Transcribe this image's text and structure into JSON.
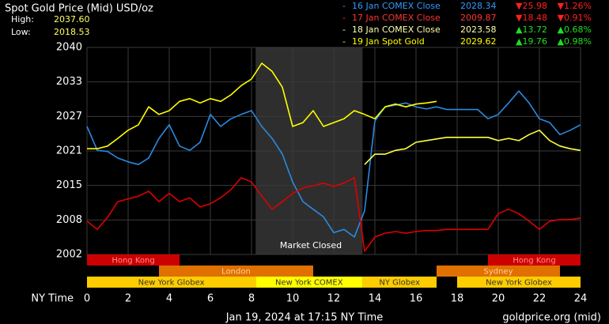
{
  "chart_data": {
    "type": "line",
    "title": "Spot Gold Price (Mid) USD/oz",
    "high_label": "High:",
    "high": 2037.6,
    "high_text": "2037.60",
    "low_label": "Low:",
    "low": 2018.53,
    "low_text": "2018.53",
    "xlabel": "NY Time",
    "annotation": "Market Closed",
    "footer_left": "Jan 19, 2024 at 17:15 NY Time",
    "footer_right": "goldprice.org (mid)",
    "closed_span": [
      8.2,
      13.4
    ],
    "up_color": "#22dd22",
    "down_color": "#ff2020",
    "grid": true,
    "xlim": [
      0,
      24
    ],
    "xticks": [
      0,
      2,
      4,
      6,
      8,
      10,
      12,
      14,
      16,
      18,
      20,
      22,
      24
    ],
    "ylim": [
      2002,
      2040
    ],
    "yticks": [
      2002,
      {
        "value": 2008.33,
        "label": "2008"
      },
      {
        "value": 2014.67,
        "label": "2015"
      },
      2021,
      {
        "value": 2027.33,
        "label": "2027"
      },
      {
        "value": 2033.67,
        "label": "2033"
      },
      2040
    ],
    "x": [
      0,
      0.5,
      1,
      1.5,
      2,
      2.5,
      3,
      3.5,
      4,
      4.5,
      5,
      5.5,
      6,
      6.5,
      7,
      7.5,
      8,
      8.5,
      9,
      9.5,
      10,
      10.5,
      11,
      11.5,
      12,
      12.5,
      13,
      13.5,
      14,
      14.5,
      15,
      15.5,
      16,
      16.5,
      17,
      17.5,
      18,
      18.5,
      19,
      19.5,
      20,
      20.5,
      21,
      21.5,
      22,
      22.5,
      23,
      23.5,
      24
    ],
    "series": [
      {
        "name": "16 Jan COMEX Close",
        "color": "#2a8ae0",
        "legend_color": "#3399ff",
        "last": "2028.34",
        "change": "▼25.98",
        "change_pct": "▼1.26%",
        "values": [
          2025.5,
          2021.1,
          2020.9,
          2019.7,
          2019,
          2018.5,
          2019.7,
          2023.3,
          2025.8,
          2021.9,
          2021.1,
          2022.6,
          2027.7,
          2025.5,
          2026.9,
          2027.7,
          2028.4,
          2025.5,
          2023.3,
          2020.4,
          2015.3,
          2011.7,
          2010.3,
          2008.9,
          2006,
          2006.6,
          2005.2,
          2010,
          2026.5,
          2029.1,
          2029.4,
          2029.8,
          2029.1,
          2028.7,
          2029.1,
          2028.6,
          2028.6,
          2028.6,
          2028.6,
          2026.9,
          2027.7,
          2029.8,
          2032,
          2029.8,
          2026.9,
          2026.2,
          2024,
          2024.8,
          2025.8
        ]
      },
      {
        "name": "17 Jan COMEX Close",
        "color": "#dd0000",
        "legend_color": "#ff3333",
        "last": "2009.87",
        "change": "▼18.48",
        "change_pct": "▼0.91%",
        "values": [
          2008.1,
          2006.6,
          2008.8,
          2011.7,
          2012.2,
          2012.7,
          2013.6,
          2011.7,
          2013.2,
          2011.7,
          2012.4,
          2010.7,
          2011.3,
          2012.4,
          2013.9,
          2016.1,
          2015.3,
          2012.7,
          2010.3,
          2011.7,
          2013.2,
          2014.2,
          2014.6,
          2015.1,
          2014.5,
          2015.1,
          2016.1,
          2002.6,
          2005.2,
          2005.9,
          2006.2,
          2005.9,
          2006.2,
          2006.4,
          2006.4,
          2006.6,
          2006.6,
          2006.6,
          2006.6,
          2006.6,
          2009.5,
          2010.3,
          2009.5,
          2008.1,
          2006.6,
          2008.1,
          2008.4,
          2008.4,
          2008.7
        ]
      },
      {
        "name": "18 Jan COMEX Close",
        "color": "#ffff44",
        "legend_color": "#ffffaa",
        "last": "2023.58",
        "change": "▲13.72",
        "change_pct": "▲0.68%",
        "values": [
          null,
          null,
          null,
          null,
          null,
          null,
          null,
          null,
          null,
          null,
          null,
          null,
          null,
          null,
          null,
          null,
          null,
          null,
          null,
          null,
          null,
          null,
          null,
          null,
          null,
          null,
          null,
          2018.5,
          2020.4,
          2020.4,
          2021.1,
          2021.4,
          2022.6,
          2022.9,
          2023.2,
          2023.5,
          2023.5,
          2023.5,
          2023.5,
          2023.5,
          2022.9,
          2023.3,
          2022.9,
          2024,
          2024.8,
          2022.9,
          2021.9,
          2021.4,
          2021.1
        ]
      },
      {
        "name": "19 Jan Spot Gold",
        "color": "#ffff00",
        "legend_color": "#ffff00",
        "last": "2029.62",
        "change": "▲19.76",
        "change_pct": "▲0.98%",
        "values": [
          2021.4,
          2021.4,
          2021.9,
          2023.3,
          2024.8,
          2025.8,
          2029.1,
          2027.7,
          2028.4,
          2030.1,
          2030.6,
          2029.8,
          2030.6,
          2030.1,
          2031.3,
          2033,
          2034.2,
          2037.1,
          2035.6,
          2032.7,
          2025.5,
          2026.2,
          2028.4,
          2025.5,
          2026.2,
          2026.9,
          2028.4,
          2027.7,
          2026.9,
          2029.1,
          2029.6,
          2029.1,
          2029.6,
          2029.8,
          2030.1,
          null,
          null,
          null,
          null,
          null,
          null,
          null,
          null,
          null,
          null,
          null,
          null,
          null,
          null
        ]
      }
    ],
    "session_rows": [
      [
        {
          "name": "Hong Kong",
          "start": 0,
          "end": 4.5,
          "color": "#cc0000",
          "text_color": "#ff9090"
        },
        {
          "name": "Hong Kong",
          "start": 19.5,
          "end": 24,
          "color": "#cc0000",
          "text_color": "#ff9090"
        }
      ],
      [
        {
          "name": "London",
          "start": 3.5,
          "end": 11,
          "color": "#e07000",
          "text_color": "#ffd0a0"
        },
        {
          "name": "Sydney",
          "start": 17,
          "end": 23,
          "color": "#e07000",
          "text_color": "#ffd0a0"
        }
      ],
      [
        {
          "name": "New York Globex",
          "start": 0,
          "end": 8.2,
          "color": "#ffcc00",
          "text_color": "#333333"
        },
        {
          "name": "New York COMEX",
          "start": 8.2,
          "end": 13.4,
          "color": "#ffff00",
          "text_color": "#333333"
        },
        {
          "name": "NY Globex",
          "start": 13.4,
          "end": 17,
          "color": "#ffcc00",
          "text_color": "#333333"
        },
        {
          "name": "New York Globex",
          "start": 18,
          "end": 24,
          "color": "#ffcc00",
          "text_color": "#333333"
        }
      ]
    ]
  }
}
